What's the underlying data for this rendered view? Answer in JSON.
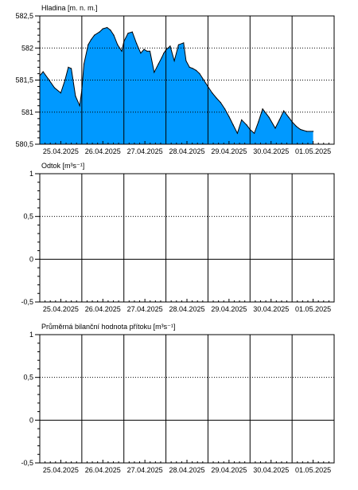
{
  "chart_data": [
    {
      "type": "area",
      "title": "Hladina [m. n. m.]",
      "ylim": [
        580.5,
        582.5
      ],
      "yticks": [
        580.5,
        581,
        581.5,
        582,
        582.5
      ],
      "ytick_labels": [
        "580,5",
        "581",
        "581,5",
        "582",
        "582,5"
      ],
      "xlim": [
        0,
        7
      ],
      "xtick_labels": [
        "25.04.2025",
        "26.04.2025",
        "27.04.2025",
        "28.04.2025",
        "29.04.2025",
        "30.04.2025",
        "01.05.2025"
      ],
      "grid": true,
      "colors": {
        "fill": "#0099ff",
        "line": "#000000"
      },
      "series": [
        {
          "x": [
            0,
            0.08,
            0.2,
            0.35,
            0.5,
            0.6,
            0.68,
            0.75,
            0.85,
            0.95,
            1.0,
            1.05,
            1.15,
            1.22,
            1.3,
            1.42,
            1.5,
            1.6,
            1.68,
            1.76,
            1.85,
            1.95,
            2.0,
            2.1,
            2.2,
            2.3,
            2.4,
            2.48,
            2.55,
            2.62,
            2.72,
            2.82,
            2.9,
            2.95,
            3.0,
            3.1,
            3.2,
            3.3,
            3.42,
            3.48,
            3.56,
            3.64,
            3.72,
            3.8,
            3.9,
            4.0,
            4.1,
            4.2,
            4.3,
            4.4,
            4.5,
            4.6,
            4.7,
            4.8,
            4.92,
            5.0,
            5.1,
            5.2,
            5.3,
            5.45,
            5.6,
            5.7,
            5.8,
            5.92,
            6.0,
            6.1,
            6.2,
            6.35,
            6.5
          ],
          "values": [
            581.57,
            581.63,
            581.52,
            581.38,
            581.3,
            581.5,
            581.7,
            581.68,
            581.25,
            581.1,
            581.35,
            581.75,
            582.05,
            582.13,
            582.2,
            582.25,
            582.3,
            582.32,
            582.28,
            582.2,
            582.05,
            581.95,
            582.1,
            582.23,
            582.25,
            582.07,
            581.92,
            581.98,
            581.95,
            581.95,
            581.62,
            581.75,
            581.85,
            581.92,
            581.97,
            582.03,
            581.8,
            582.05,
            582.08,
            581.8,
            581.7,
            581.68,
            581.65,
            581.6,
            581.5,
            581.4,
            581.3,
            581.22,
            581.15,
            581.05,
            580.93,
            580.8,
            580.67,
            580.88,
            580.8,
            580.73,
            580.67,
            580.85,
            581.05,
            580.92,
            580.75,
            580.88,
            581.02,
            580.92,
            580.85,
            580.78,
            580.73,
            580.7,
            580.7
          ]
        }
      ]
    },
    {
      "type": "line",
      "title": "Odtok [m³s⁻¹]",
      "ylim": [
        -0.5,
        1
      ],
      "yticks": [
        -0.5,
        0,
        0.5,
        1
      ],
      "ytick_labels": [
        "-0,5",
        "0",
        "0,5",
        "1"
      ],
      "xlim": [
        0,
        7
      ],
      "xtick_labels": [
        "25.04.2025",
        "26.04.2025",
        "27.04.2025",
        "28.04.2025",
        "29.04.2025",
        "30.04.2025",
        "01.05.2025"
      ],
      "grid": true,
      "series": []
    },
    {
      "type": "line",
      "title": "Průměrná bilanční hodnota přítoku   [m³s⁻¹]",
      "ylim": [
        -0.5,
        1
      ],
      "yticks": [
        -0.5,
        0,
        0.5,
        1
      ],
      "ytick_labels": [
        "-0,5",
        "0",
        "0,5",
        "1"
      ],
      "xlim": [
        0,
        7
      ],
      "xtick_labels": [
        "25.04.2025",
        "26.04.2025",
        "27.04.2025",
        "28.04.2025",
        "29.04.2025",
        "30.04.2025",
        "01.05.2025"
      ],
      "grid": true,
      "series": []
    }
  ]
}
